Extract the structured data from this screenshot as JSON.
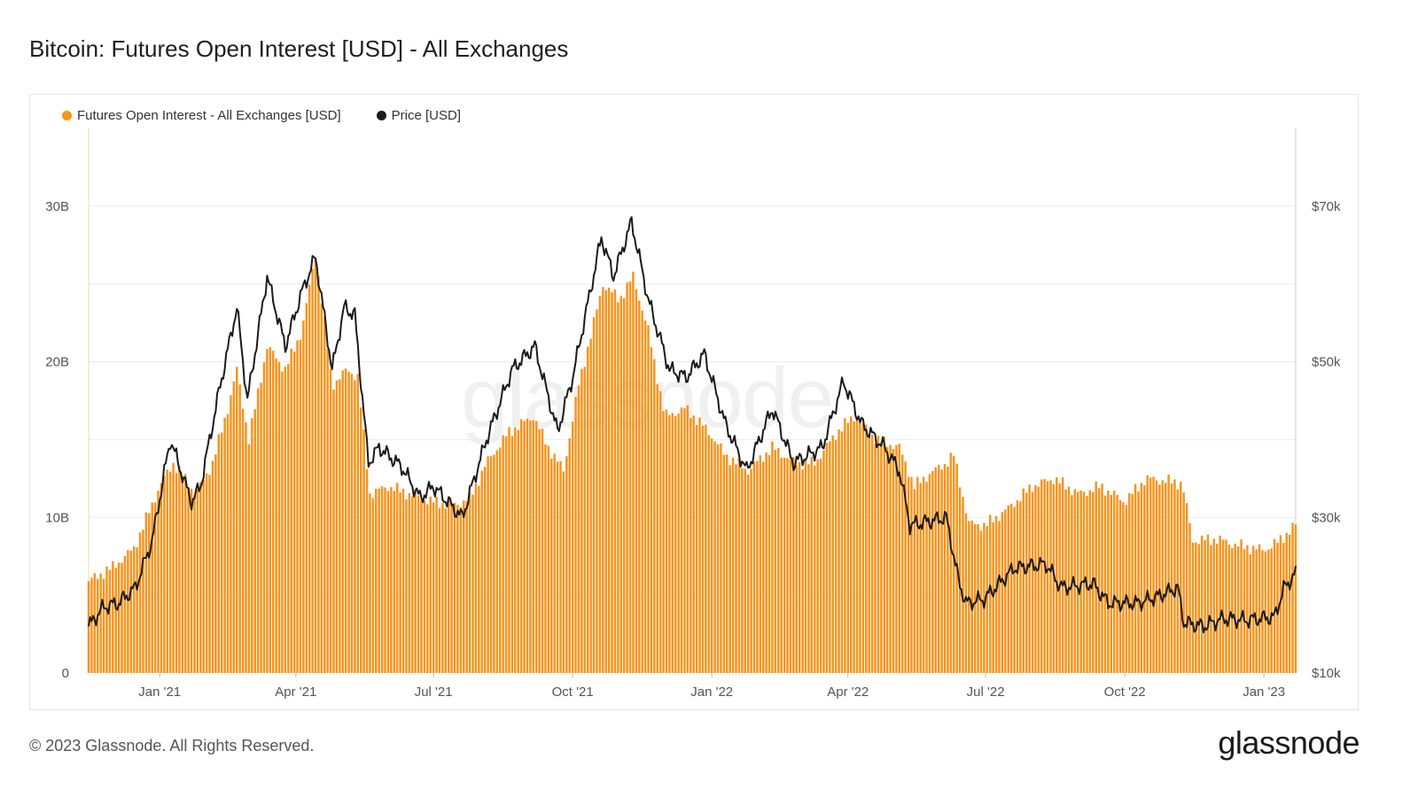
{
  "title": "Bitcoin: Futures Open Interest [USD] - All Exchanges",
  "footer": {
    "copyright": "© 2023 Glassnode. All Rights Reserved.",
    "logo": "glassnode"
  },
  "watermark": "glassnode",
  "colors": {
    "open_interest": "#f7931a",
    "price": "#1b1b1b",
    "grid": "#ececec"
  },
  "chart_data": {
    "type": "bar",
    "legend_placement": "top-left",
    "grid": true,
    "legend": [
      {
        "label": "Futures Open Interest - All Exchanges [USD]",
        "color": "#f7931a"
      },
      {
        "label": "Price [USD]",
        "color": "#1b1b1b"
      }
    ],
    "x_ticks": [
      "Jan '21",
      "Apr '21",
      "Jul '21",
      "Oct '21",
      "Jan '22",
      "Apr '22",
      "Jul '22",
      "Oct '22",
      "Jan '23"
    ],
    "x_range": [
      "2020-11-15",
      "2023-01-22"
    ],
    "y_left": {
      "ticks": [
        "0",
        "10B",
        "20B",
        "30B"
      ],
      "range": [
        0,
        35
      ],
      "unit": "billion USD"
    },
    "y_right": {
      "ticks": [
        "$10k",
        "$30k",
        "$50k",
        "$70k"
      ],
      "range": [
        10000,
        80000
      ],
      "unit": "USD"
    },
    "series": [
      {
        "name": "Futures Open Interest - All Exchanges [USD]",
        "kind": "bar",
        "axis": "left",
        "points": [
          [
            "2020-11-15",
            5.9
          ],
          [
            "2020-12-01",
            6.8
          ],
          [
            "2020-12-15",
            8.0
          ],
          [
            "2021-01-01",
            12.0
          ],
          [
            "2021-01-10",
            13.5
          ],
          [
            "2021-01-25",
            11.5
          ],
          [
            "2021-02-05",
            13.5
          ],
          [
            "2021-02-15",
            17.0
          ],
          [
            "2021-02-21",
            19.5
          ],
          [
            "2021-03-01",
            15.0
          ],
          [
            "2021-03-13",
            21.0
          ],
          [
            "2021-03-25",
            19.5
          ],
          [
            "2021-04-05",
            22.0
          ],
          [
            "2021-04-14",
            27.0
          ],
          [
            "2021-04-20",
            22.5
          ],
          [
            "2021-04-25",
            18.5
          ],
          [
            "2021-05-05",
            19.5
          ],
          [
            "2021-05-12",
            19.0
          ],
          [
            "2021-05-20",
            11.5
          ],
          [
            "2021-06-01",
            12.0
          ],
          [
            "2021-06-15",
            11.5
          ],
          [
            "2021-07-01",
            11.0
          ],
          [
            "2021-07-15",
            10.8
          ],
          [
            "2021-07-25",
            11.2
          ],
          [
            "2021-08-05",
            13.5
          ],
          [
            "2021-08-20",
            15.5
          ],
          [
            "2021-09-05",
            16.5
          ],
          [
            "2021-09-15",
            14.5
          ],
          [
            "2021-09-25",
            13.0
          ],
          [
            "2021-10-05",
            18.5
          ],
          [
            "2021-10-15",
            22.5
          ],
          [
            "2021-10-21",
            25.0
          ],
          [
            "2021-11-01",
            24.0
          ],
          [
            "2021-11-10",
            25.5
          ],
          [
            "2021-11-20",
            22.0
          ],
          [
            "2021-12-01",
            16.5
          ],
          [
            "2021-12-15",
            17.0
          ],
          [
            "2021-12-30",
            15.5
          ],
          [
            "2022-01-10",
            14.0
          ],
          [
            "2022-01-25",
            13.0
          ],
          [
            "2022-02-10",
            14.5
          ],
          [
            "2022-02-25",
            13.5
          ],
          [
            "2022-03-10",
            13.5
          ],
          [
            "2022-03-25",
            15.5
          ],
          [
            "2022-04-05",
            16.5
          ],
          [
            "2022-04-20",
            15.0
          ],
          [
            "2022-05-05",
            14.5
          ],
          [
            "2022-05-15",
            12.0
          ],
          [
            "2022-05-25",
            12.8
          ],
          [
            "2022-06-05",
            13.5
          ],
          [
            "2022-06-10",
            14.0
          ],
          [
            "2022-06-20",
            9.6
          ],
          [
            "2022-07-01",
            9.5
          ],
          [
            "2022-07-15",
            10.5
          ],
          [
            "2022-08-01",
            12.0
          ],
          [
            "2022-08-15",
            12.5
          ],
          [
            "2022-09-01",
            11.5
          ],
          [
            "2022-09-15",
            12.0
          ],
          [
            "2022-10-01",
            11.0
          ],
          [
            "2022-10-15",
            12.5
          ],
          [
            "2022-11-01",
            12.3
          ],
          [
            "2022-11-08",
            12.2
          ],
          [
            "2022-11-15",
            8.5
          ],
          [
            "2022-12-01",
            8.6
          ],
          [
            "2022-12-15",
            8.2
          ],
          [
            "2023-01-01",
            7.9
          ],
          [
            "2023-01-10",
            8.4
          ],
          [
            "2023-01-22",
            9.5
          ]
        ]
      },
      {
        "name": "Price [USD]",
        "kind": "line",
        "axis": "right",
        "points": [
          [
            "2020-11-15",
            16000
          ],
          [
            "2020-11-25",
            18500
          ],
          [
            "2020-12-05",
            19000
          ],
          [
            "2020-12-16",
            21000
          ],
          [
            "2020-12-27",
            27000
          ],
          [
            "2021-01-08",
            40000
          ],
          [
            "2021-01-15",
            36000
          ],
          [
            "2021-01-22",
            32000
          ],
          [
            "2021-01-28",
            34000
          ],
          [
            "2021-02-09",
            46000
          ],
          [
            "2021-02-21",
            57000
          ],
          [
            "2021-02-28",
            45000
          ],
          [
            "2021-03-13",
            61000
          ],
          [
            "2021-03-25",
            52000
          ],
          [
            "2021-04-05",
            59000
          ],
          [
            "2021-04-14",
            63500
          ],
          [
            "2021-04-25",
            49000
          ],
          [
            "2021-05-03",
            57000
          ],
          [
            "2021-05-10",
            56000
          ],
          [
            "2021-05-19",
            37000
          ],
          [
            "2021-05-26",
            39000
          ],
          [
            "2021-06-10",
            36500
          ],
          [
            "2021-06-22",
            32500
          ],
          [
            "2021-07-01",
            34000
          ],
          [
            "2021-07-20",
            30000
          ],
          [
            "2021-08-05",
            40000
          ],
          [
            "2021-08-22",
            49000
          ],
          [
            "2021-09-06",
            52000
          ],
          [
            "2021-09-21",
            41000
          ],
          [
            "2021-10-01",
            48000
          ],
          [
            "2021-10-20",
            66000
          ],
          [
            "2021-10-28",
            61000
          ],
          [
            "2021-11-09",
            68000
          ],
          [
            "2021-11-20",
            58000
          ],
          [
            "2021-12-04",
            49000
          ],
          [
            "2021-12-15",
            48000
          ],
          [
            "2021-12-27",
            51000
          ],
          [
            "2022-01-10",
            42000
          ],
          [
            "2022-01-24",
            36000
          ],
          [
            "2022-02-10",
            44000
          ],
          [
            "2022-02-24",
            37000
          ],
          [
            "2022-03-15",
            39000
          ],
          [
            "2022-03-29",
            47500
          ],
          [
            "2022-04-10",
            42000
          ],
          [
            "2022-04-25",
            39000
          ],
          [
            "2022-05-05",
            36000
          ],
          [
            "2022-05-12",
            29000
          ],
          [
            "2022-05-25",
            29500
          ],
          [
            "2022-06-05",
            30000
          ],
          [
            "2022-06-13",
            22000
          ],
          [
            "2022-06-18",
            19000
          ],
          [
            "2022-06-30",
            19500
          ],
          [
            "2022-07-20",
            23500
          ],
          [
            "2022-08-10",
            24000
          ],
          [
            "2022-08-20",
            21000
          ],
          [
            "2022-09-10",
            21500
          ],
          [
            "2022-09-20",
            19000
          ],
          [
            "2022-10-10",
            19000
          ],
          [
            "2022-10-25",
            20000
          ],
          [
            "2022-11-05",
            21000
          ],
          [
            "2022-11-09",
            16500
          ],
          [
            "2022-11-22",
            16000
          ],
          [
            "2022-12-05",
            17000
          ],
          [
            "2022-12-20",
            16800
          ],
          [
            "2023-01-08",
            17200
          ],
          [
            "2023-01-14",
            20800
          ],
          [
            "2023-01-22",
            22800
          ]
        ]
      }
    ]
  }
}
